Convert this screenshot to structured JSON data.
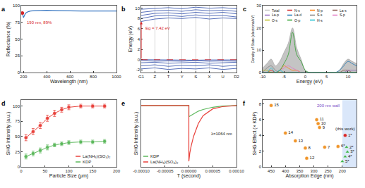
{
  "chart_data": [
    {
      "panel": "a",
      "type": "line",
      "xlabel": "Wavelength (nm)",
      "ylabel": "Reflectance (%)",
      "x": [
        190,
        195,
        200,
        210,
        220,
        240,
        260,
        300,
        350,
        400,
        500,
        600,
        700,
        800,
        900,
        1000
      ],
      "values": [
        89,
        85,
        82,
        86,
        89,
        91,
        92,
        92.5,
        93,
        93,
        92.5,
        92,
        92,
        92,
        92,
        92
      ],
      "color": "#3a78c2",
      "xlim": [
        180,
        1000
      ],
      "xticks": [
        200,
        400,
        600,
        800,
        1000
      ],
      "ylim": [
        0,
        100
      ],
      "yticks": [
        0,
        25,
        50,
        75,
        100
      ],
      "annotation": "190 nm, 89%",
      "highlight": {
        "x": 190,
        "y": 89,
        "color": "#d62728"
      }
    },
    {
      "panel": "b",
      "type": "line",
      "ylabel": "Energy (eV)",
      "categories": [
        "G1",
        "Z",
        "T",
        "Y",
        "S",
        "X",
        "U",
        "R2"
      ],
      "color": "#2b4aa8",
      "series": [
        {
          "values": [
            0,
            -0.05,
            -0.1,
            -0.05,
            -0.1,
            -0.05,
            -0.1,
            -0.05
          ]
        },
        {
          "values": [
            -0.2,
            -0.3,
            -0.25,
            -0.3,
            -0.2,
            -0.3,
            -0.25,
            -0.3
          ]
        },
        {
          "values": [
            -0.6,
            -0.5,
            -0.7,
            -0.6,
            -0.5,
            -0.7,
            -0.6,
            -0.5
          ]
        },
        {
          "values": [
            -1.2,
            -1.0,
            -1.3,
            -1.1,
            -1.2,
            -1.0,
            -1.3,
            -1.1
          ]
        },
        {
          "values": [
            -1.8,
            -1.6,
            -1.9,
            -1.7,
            -1.8,
            -1.6,
            -1.9,
            -1.7
          ]
        },
        {
          "values": [
            7.42,
            7.9,
            8.1,
            8.0,
            8.2,
            7.9,
            8.1,
            8.0
          ]
        },
        {
          "values": [
            8.0,
            8.5,
            8.6,
            8.4,
            8.7,
            8.5,
            8.6,
            8.3
          ]
        },
        {
          "values": [
            8.6,
            9.0,
            9.1,
            8.9,
            9.2,
            9.0,
            9.2,
            8.9
          ]
        },
        {
          "values": [
            9.2,
            9.5,
            9.6,
            9.4,
            9.7,
            9.5,
            9.6,
            9.4
          ]
        },
        {
          "values": [
            9.8,
            10.0,
            10.1,
            9.9,
            10.2,
            10.0,
            10.1,
            9.9
          ]
        }
      ],
      "ylim": [
        -2.5,
        10.5
      ],
      "yticks": [
        -2,
        0,
        2,
        4,
        6,
        8,
        10
      ],
      "grid": true,
      "annotation": "Eg = 7.42 eV",
      "gap": [
        0,
        7.42
      ],
      "hline": 0
    },
    {
      "panel": "c",
      "type": "line",
      "xlabel": "Energy (eV)",
      "ylabel": "Density of State (electrons/eV)",
      "x": [
        -10,
        -9,
        -8,
        -7,
        -6,
        -5,
        -4,
        -3,
        -2,
        -1,
        0,
        1,
        2,
        3,
        4,
        5,
        6,
        7,
        8,
        9,
        10,
        11,
        12
      ],
      "series": [
        {
          "name": "Total",
          "type": "area",
          "color": "#c4c4c4",
          "values": [
            2,
            4,
            6,
            3,
            5,
            9,
            13,
            20,
            11,
            6,
            1,
            0,
            0,
            0,
            0,
            0,
            0,
            0,
            1,
            4,
            6,
            5,
            4
          ]
        },
        {
          "name": "N-s",
          "color": "#d62728",
          "values": [
            0,
            0,
            1,
            0,
            0,
            0,
            0,
            0,
            0,
            0,
            0,
            0,
            0,
            0,
            0,
            0,
            0,
            0,
            0,
            0,
            0,
            0,
            0
          ]
        },
        {
          "name": "N-p",
          "color": "#ff7f0e",
          "values": [
            0,
            0,
            0,
            0,
            1,
            3,
            2,
            1,
            1,
            0,
            0,
            0,
            0,
            0,
            0,
            0,
            0,
            0,
            0,
            0,
            0,
            0,
            0
          ]
        },
        {
          "name": "La-s",
          "color": "#8c564b",
          "values": [
            0,
            0,
            0,
            0,
            0,
            0,
            0,
            0,
            0,
            0,
            0,
            0,
            0,
            0,
            0,
            0,
            0,
            0,
            0,
            1,
            1,
            0,
            0
          ]
        },
        {
          "name": "La-p",
          "color": "#9467bd",
          "values": [
            0,
            0,
            0,
            0,
            0,
            0,
            0,
            0,
            0,
            0,
            0,
            0,
            0,
            0,
            0,
            0,
            0,
            0,
            0,
            0,
            1,
            1,
            1
          ]
        },
        {
          "name": "La-d",
          "color": "#1f77b4",
          "values": [
            0,
            0,
            0,
            0,
            0,
            0,
            0,
            0,
            0,
            0,
            0,
            0,
            0,
            0,
            0,
            0,
            0,
            0,
            1,
            3,
            5,
            4,
            3
          ]
        },
        {
          "name": "S-s",
          "color": "#7f7f7f",
          "values": [
            0,
            2,
            3,
            1,
            0,
            0,
            0,
            0,
            0,
            0,
            0,
            0,
            0,
            0,
            0,
            0,
            0,
            0,
            0,
            0,
            0,
            0,
            0
          ]
        },
        {
          "name": "S-p",
          "color": "#e377c2",
          "values": [
            0,
            0,
            0,
            0,
            1,
            2,
            3,
            2,
            1,
            0,
            0,
            0,
            0,
            0,
            0,
            0,
            0,
            0,
            0,
            0,
            0,
            0,
            0
          ]
        },
        {
          "name": "O-s",
          "color": "#bcbd22",
          "values": [
            1,
            1,
            0,
            0,
            0,
            0,
            0,
            0,
            0,
            0,
            0,
            0,
            0,
            0,
            0,
            0,
            0,
            0,
            0,
            0,
            0,
            0,
            0
          ]
        },
        {
          "name": "O-p",
          "color": "#2ca02c",
          "values": [
            0,
            0,
            0,
            0,
            1,
            4,
            8,
            18,
            8,
            5,
            1,
            0,
            0,
            0,
            0,
            0,
            0,
            0,
            0,
            0,
            0,
            0,
            0
          ]
        },
        {
          "name": "H-s",
          "color": "#17becf",
          "values": [
            0,
            0,
            2,
            0,
            1,
            0,
            0,
            0,
            0,
            0,
            0,
            0,
            0,
            0,
            0,
            0,
            0,
            0,
            0,
            0,
            0,
            0,
            0
          ]
        }
      ],
      "xlim": [
        -10,
        12
      ],
      "xticks": [
        -10,
        -5,
        0,
        5,
        10
      ],
      "ylim": [
        0,
        30
      ],
      "yticks": [
        0,
        10,
        20,
        30
      ],
      "legend": "top"
    },
    {
      "panel": "d",
      "type": "scatter",
      "xlabel": "Particle Size (μm)",
      "ylabel": "SHG Intensity (a.u.)",
      "x": [
        10,
        25,
        40,
        55,
        70,
        85,
        100,
        125,
        150,
        175
      ],
      "series": [
        {
          "name": "La(NH₃)(SO₄)₂",
          "color": "#e8413b",
          "marker": "circle",
          "line_style": "solid",
          "values": [
            48,
            58,
            68,
            80,
            88,
            94,
            98,
            100,
            100,
            100
          ],
          "errors": [
            5,
            5,
            5,
            5,
            5,
            4,
            4,
            3,
            3,
            3
          ]
        },
        {
          "name": "KDP",
          "color": "#5cb85c",
          "marker": "circle",
          "line_style": "solid",
          "values": [
            17,
            22,
            27,
            32,
            36,
            38,
            40,
            41,
            41,
            42
          ],
          "errors": [
            4,
            4,
            4,
            4,
            3,
            3,
            3,
            3,
            3,
            3
          ]
        }
      ],
      "xlim": [
        0,
        200
      ],
      "xticks": [
        0,
        50,
        100,
        150,
        200
      ],
      "ylim": [
        0,
        110
      ],
      "yticks": [
        0,
        25,
        50,
        75,
        100
      ],
      "legend": "lower right"
    },
    {
      "panel": "e",
      "type": "line",
      "xlabel": "T (second)",
      "ylabel": "SHG Intensity (a.u.)",
      "x": [
        -0.0001,
        -5e-05,
        0,
        0,
        2e-06,
        5e-06,
        1e-05,
        2e-05,
        3e-05,
        5e-05,
        7e-05,
        0.0001
      ],
      "series": [
        {
          "name": "KDP",
          "color": "#5cb85c",
          "values": [
            0,
            0,
            0,
            -0.2,
            -0.19,
            -0.17,
            -0.14,
            -0.1,
            -0.07,
            -0.03,
            -0.01,
            0
          ]
        },
        {
          "name": "La(NH₃)(SO₄)₂",
          "color": "#e8413b",
          "values": [
            0,
            0,
            0,
            -1,
            -0.85,
            -0.72,
            -0.55,
            -0.32,
            -0.18,
            -0.06,
            -0.02,
            0
          ]
        }
      ],
      "xlim": [
        -0.0001,
        0.0001
      ],
      "xticks": [
        {
          "value": -0.0001,
          "label": "-0.00010"
        },
        {
          "value": -5e-05,
          "label": "-0.00005"
        },
        {
          "value": 0,
          "label": "0.00000"
        },
        {
          "value": 5e-05,
          "label": "0.00005"
        },
        {
          "value": 0.0001,
          "label": "0.00010"
        }
      ],
      "ylim": [
        -1.1,
        0.1
      ],
      "tick_labels": "x",
      "annotation": "λ=1064 nm",
      "legend": "lower left"
    },
    {
      "panel": "f",
      "type": "scatter",
      "xlabel": "Absorption Edge (nm)",
      "ylabel": "SHG Effect (× KDP)",
      "series": [
        {
          "color": "#f0952a",
          "marker": "circle",
          "x": [
            450,
            400,
            365,
            325,
            290,
            285,
            280,
            330,
            262,
            215
          ],
          "values": [
            7.8,
            4.3,
            3.3,
            1.1,
            6.0,
            5.5,
            5.0,
            2.4,
            2.5,
            2.6
          ],
          "labels": [
            "15",
            "14",
            "13",
            "12",
            "11",
            "10",
            "9",
            "8",
            "7",
            "6*"
          ]
        },
        {
          "color": "#3cb44b",
          "marker": "triangle",
          "x": [
            185,
            182,
            190,
            200
          ],
          "values": [
            2.5,
            1.9,
            1.3,
            0.7
          ],
          "labels": [
            "2*",
            "3*",
            "4*",
            "5*"
          ]
        },
        {
          "color": "#d62728",
          "marker": "circle",
          "x": [
            190
          ],
          "values": [
            4.0
          ],
          "labels": [
            "1*"
          ],
          "note": "(this work)"
        }
      ],
      "xlim": [
        480,
        150
      ],
      "xticks": [
        450,
        400,
        350,
        300,
        250,
        200
      ],
      "ylim": [
        0,
        8.5
      ],
      "yticks": [
        0,
        2,
        4,
        6,
        8
      ],
      "wall": 200,
      "annotation": "200 nm wall"
    }
  ]
}
